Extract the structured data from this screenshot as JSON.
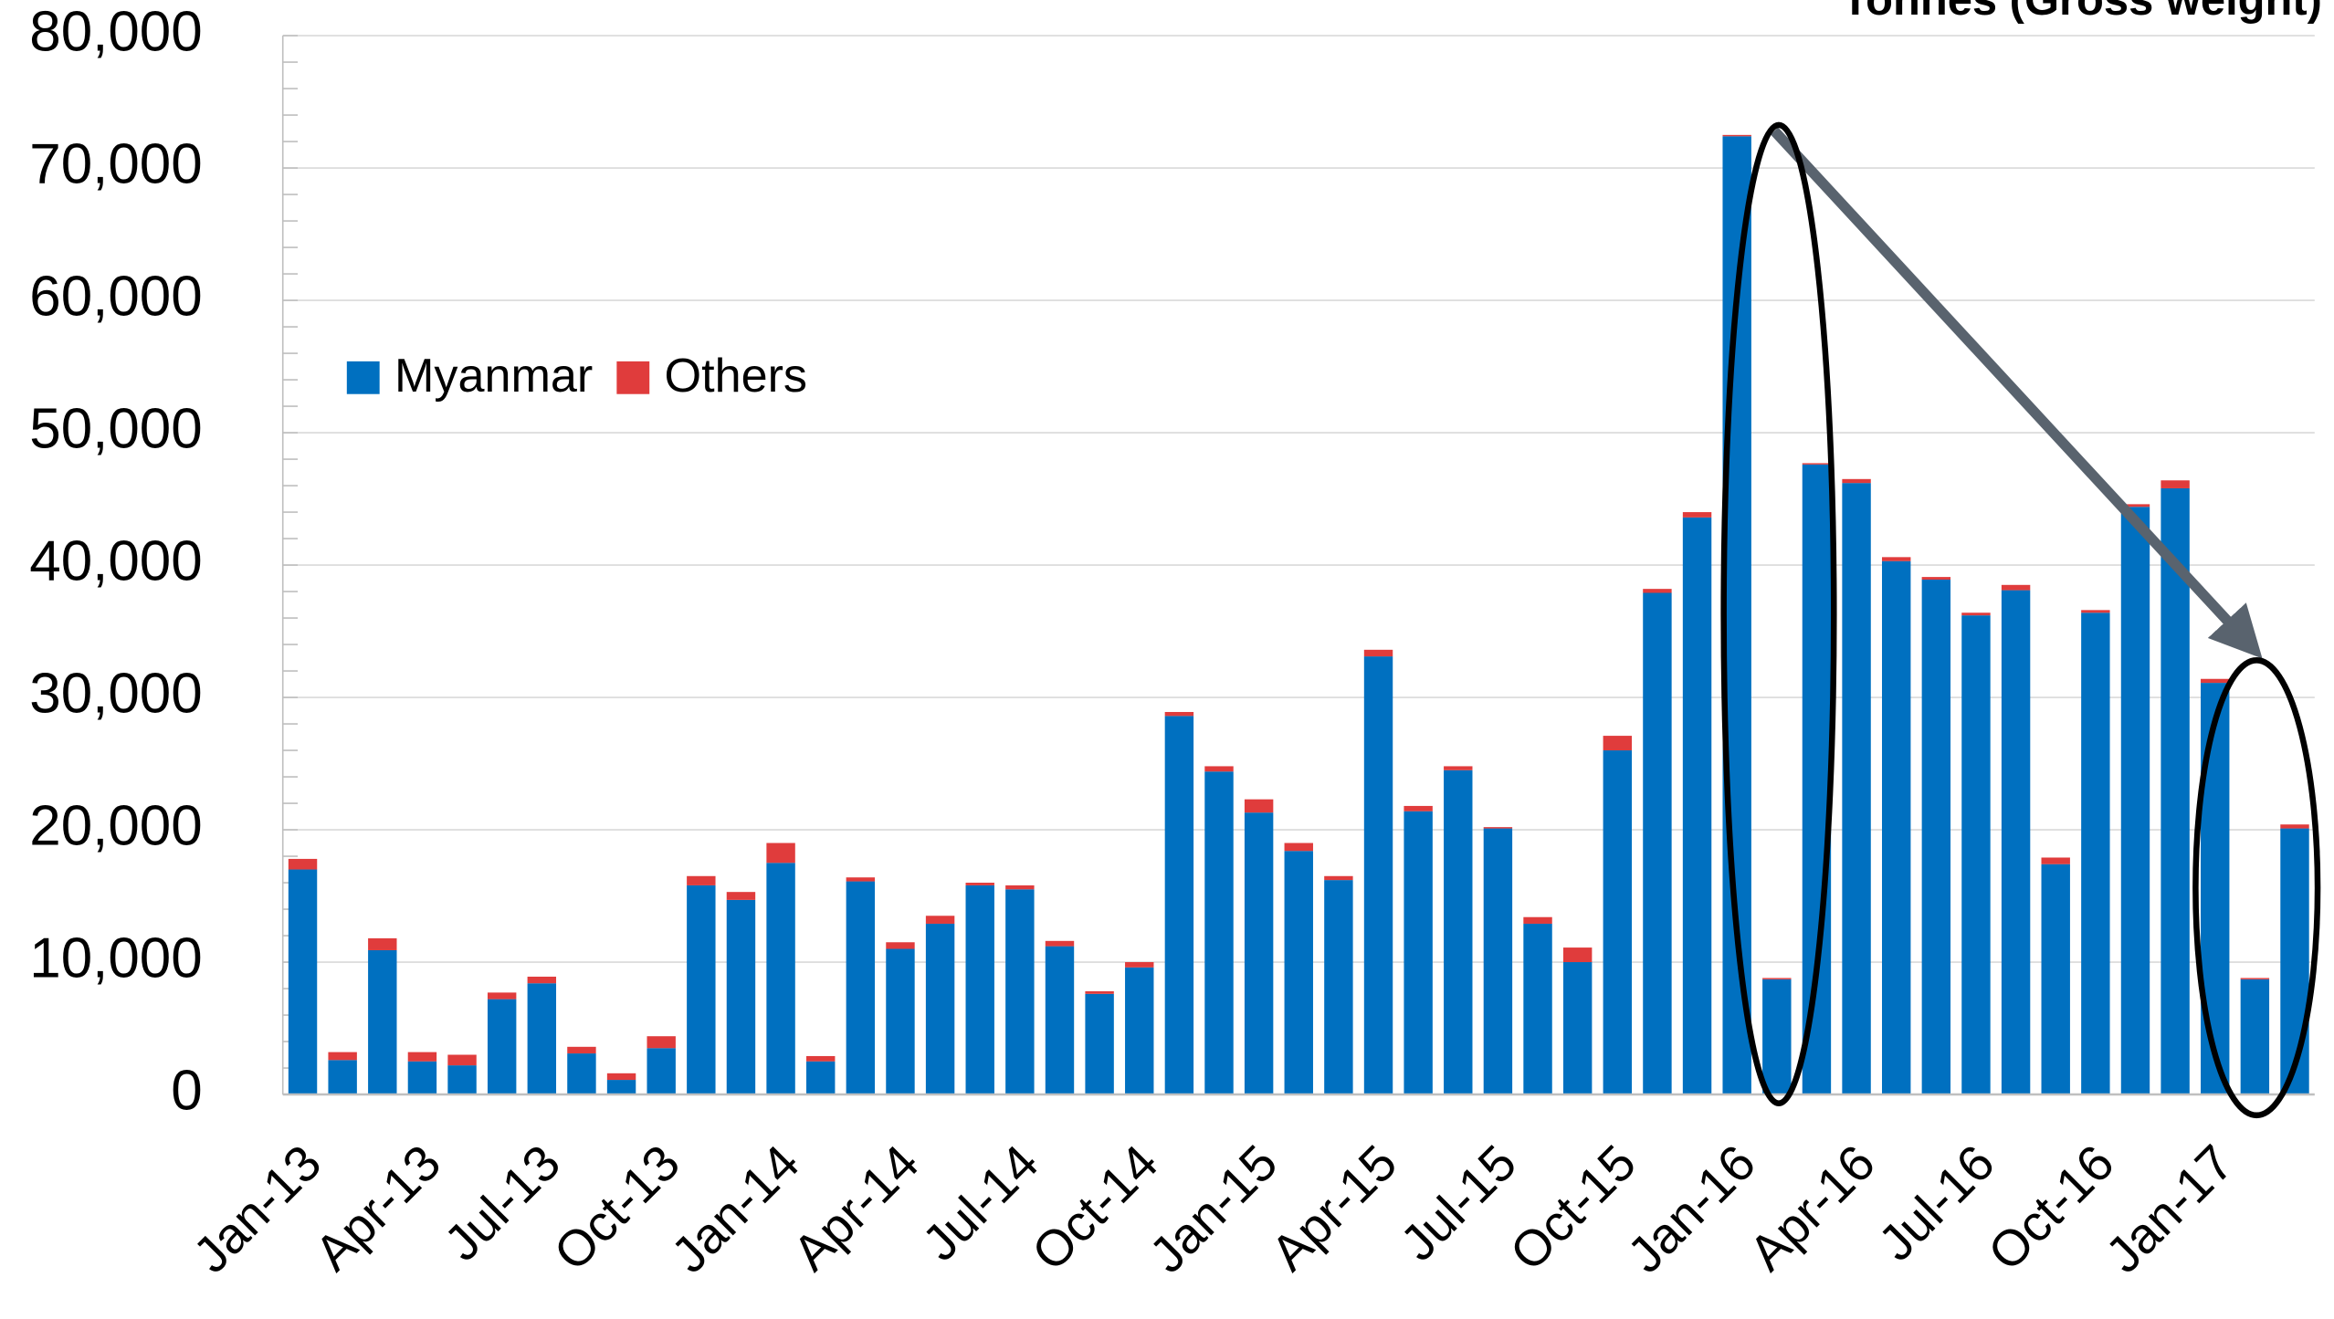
{
  "chart_data": {
    "type": "stacked-bar",
    "title": "Tonnes (Gross weight)",
    "categories": [
      "Jan-13",
      null,
      null,
      "Apr-13",
      null,
      null,
      "Jul-13",
      null,
      null,
      "Oct-13",
      null,
      null,
      "Jan-14",
      null,
      null,
      "Apr-14",
      null,
      null,
      "Jul-14",
      null,
      null,
      "Oct-14",
      null,
      null,
      "Jan-15",
      null,
      null,
      "Apr-15",
      null,
      null,
      "Jul-15",
      null,
      null,
      "Oct-15",
      null,
      null,
      "Jan-16",
      null,
      null,
      "Apr-16",
      null,
      null,
      "Jul-16",
      null,
      null,
      "Oct-16",
      null,
      null,
      "Jan-17",
      null,
      null
    ],
    "series": [
      {
        "name": "Myanmar",
        "color": "#0070c0",
        "values": [
          17000,
          2600,
          10900,
          2500,
          2200,
          7200,
          8400,
          3100,
          1100,
          3500,
          15800,
          14700,
          17500,
          2500,
          16100,
          11000,
          12900,
          15800,
          15500,
          11200,
          7600,
          9600,
          28600,
          24400,
          21300,
          18400,
          16200,
          33100,
          21400,
          24500,
          20100,
          12900,
          10000,
          26000,
          37900,
          43600,
          72400,
          8700,
          47600,
          46200,
          40300,
          38900,
          36200,
          38100,
          17400,
          36400,
          44400,
          45800,
          31100,
          8700,
          20100
        ]
      },
      {
        "name": "Others",
        "color": "#e03c3c",
        "values": [
          800,
          600,
          900,
          700,
          800,
          500,
          500,
          500,
          500,
          900,
          700,
          600,
          1500,
          400,
          300,
          500,
          600,
          200,
          300,
          400,
          200,
          400,
          300,
          400,
          1000,
          600,
          300,
          500,
          400,
          300,
          100,
          500,
          1100,
          1100,
          300,
          400,
          100,
          100,
          100,
          300,
          300,
          200,
          200,
          400,
          500,
          200,
          200,
          600,
          300,
          100,
          300
        ]
      }
    ],
    "ylim": [
      0,
      80000
    ],
    "yticks": [
      0,
      {
        "value": 10000,
        "label": "10,000"
      },
      {
        "value": 20000,
        "label": "20,000"
      },
      {
        "value": 30000,
        "label": "30,000"
      },
      {
        "value": 40000,
        "label": "40,000"
      },
      {
        "value": 50000,
        "label": "50,000"
      },
      {
        "value": 60000,
        "label": "60,000"
      },
      {
        "value": 70000,
        "label": "70,000"
      },
      {
        "value": 80000,
        "label": "80,000"
      }
    ],
    "grid": true,
    "legend": "upper-left"
  }
}
